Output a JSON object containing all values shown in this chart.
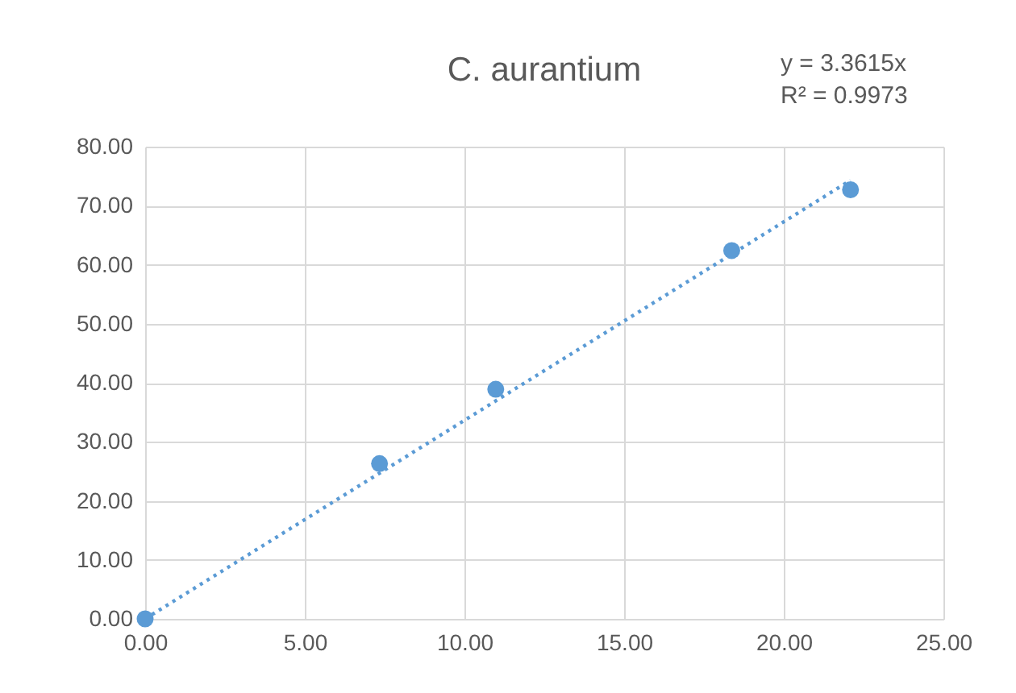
{
  "chart_data": {
    "type": "scatter",
    "title": "C. aurantium",
    "annotations": [
      "y = 3.3615x",
      "R² = 0.9973"
    ],
    "series": [
      {
        "color": "#5b9bd5",
        "marker": "circle",
        "x": [
          0,
          7.34,
          10.98,
          18.37,
          22.09
        ],
        "values": [
          0,
          26.3,
          38.9,
          62.4,
          72.7
        ]
      },
      {
        "type": "line",
        "color": "#5b9bd5",
        "line_style": "dotted",
        "x": [
          0,
          22.09
        ],
        "values": [
          0,
          74.3
        ]
      }
    ],
    "xlim": [
      0,
      25
    ],
    "ylim": [
      0,
      80
    ],
    "xticks": [
      {
        "value": 0,
        "label": "0.00"
      },
      {
        "value": 5,
        "label": "5.00"
      },
      {
        "value": 10,
        "label": "10.00"
      },
      {
        "value": 15,
        "label": "15.00"
      },
      {
        "value": 20,
        "label": "20.00"
      },
      {
        "value": 25,
        "label": "25.00"
      }
    ],
    "yticks": [
      {
        "value": 0,
        "label": "0.00"
      },
      {
        "value": 10,
        "label": "10.00"
      },
      {
        "value": 20,
        "label": "20.00"
      },
      {
        "value": 30,
        "label": "30.00"
      },
      {
        "value": 40,
        "label": "40.00"
      },
      {
        "value": 50,
        "label": "50.00"
      },
      {
        "value": 60,
        "label": "60.00"
      },
      {
        "value": 70,
        "label": "70.00"
      },
      {
        "value": 80,
        "label": "80.00"
      }
    ],
    "grid": true
  }
}
